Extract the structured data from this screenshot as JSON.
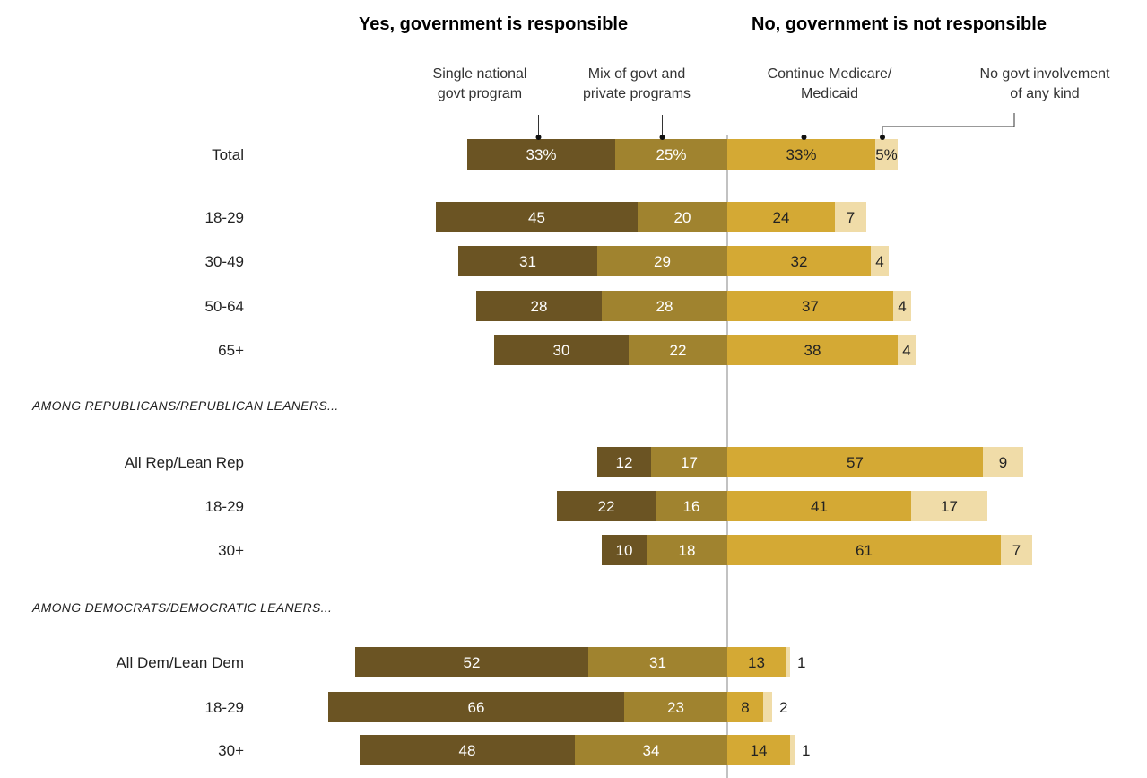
{
  "headers": {
    "yes": "Yes, government is responsible",
    "no": "No, government is not responsible"
  },
  "subheaders": {
    "single_l1": "Single national",
    "single_l2": "govt program",
    "mix_l1": "Mix of govt and",
    "mix_l2": "private programs",
    "cont_l1": "Continue Medicare/",
    "cont_l2": "Medicaid",
    "none_l1": "No govt involvement",
    "none_l2": "of any kind"
  },
  "groups": {
    "rep": "AMONG REPUBLICANS/REPUBLICAN LEANERS...",
    "dem": "AMONG DEMOCRATS/DEMOCRATIC LEANERS..."
  },
  "chart_data": {
    "type": "bar",
    "orientation": "horizontal-diverging",
    "categories": [
      "Total",
      "18-29",
      "30-49",
      "50-64",
      "65+",
      "All Rep/Lean Rep",
      "18-29",
      "30+",
      "All Dem/Lean Dem",
      "18-29",
      "30+"
    ],
    "series": [
      {
        "name": "Single national govt program",
        "side": "yes",
        "color": "#6b5423",
        "values": [
          33,
          45,
          31,
          28,
          30,
          12,
          22,
          10,
          52,
          66,
          48
        ]
      },
      {
        "name": "Mix of govt and private programs",
        "side": "yes",
        "color": "#a0832f",
        "values": [
          25,
          20,
          29,
          28,
          22,
          17,
          16,
          18,
          31,
          23,
          34
        ]
      },
      {
        "name": "Continue Medicare/Medicaid",
        "side": "no",
        "color": "#d4a934",
        "values": [
          33,
          24,
          32,
          37,
          38,
          57,
          41,
          61,
          13,
          8,
          14
        ]
      },
      {
        "name": "No govt involvement of any kind",
        "side": "no",
        "color": "#f0dca8",
        "values": [
          5,
          7,
          4,
          4,
          4,
          9,
          17,
          7,
          1,
          2,
          1
        ]
      }
    ],
    "labels": [
      [
        "33%",
        "25%",
        "33%",
        "5%"
      ],
      [
        "45",
        "20",
        "24",
        "7"
      ],
      [
        "31",
        "29",
        "32",
        "4"
      ],
      [
        "28",
        "28",
        "37",
        "4"
      ],
      [
        "30",
        "22",
        "38",
        "4"
      ],
      [
        "12",
        "17",
        "57",
        "9"
      ],
      [
        "22",
        "16",
        "41",
        "17"
      ],
      [
        "10",
        "18",
        "61",
        "7"
      ],
      [
        "52",
        "31",
        "13",
        "1"
      ],
      [
        "66",
        "23",
        "8",
        "2"
      ],
      [
        "48",
        "34",
        "14",
        "1"
      ]
    ]
  }
}
